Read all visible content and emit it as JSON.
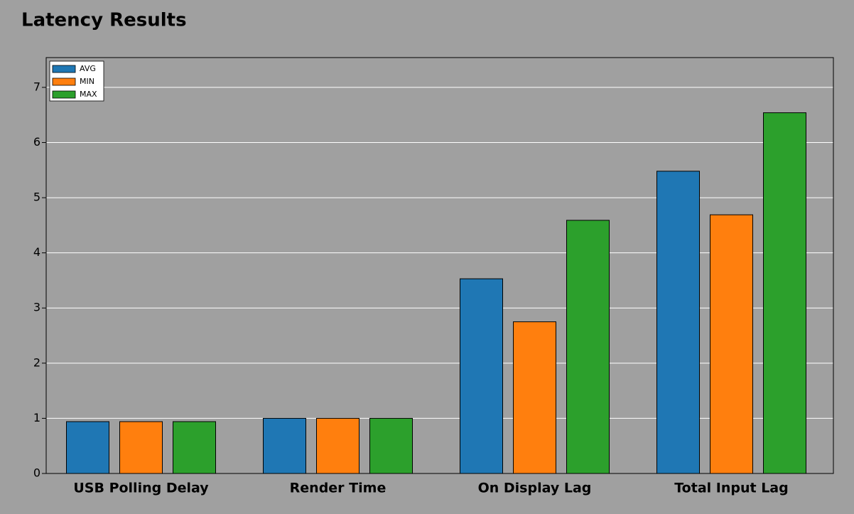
{
  "chart_data": {
    "type": "bar",
    "title": "Latency Results",
    "categories": [
      "USB Polling Delay",
      "Render Time",
      "On Display Lag",
      "Total Input Lag"
    ],
    "series": [
      {
        "name": "AVG",
        "color": "#1f77b4",
        "values": [
          0.94,
          1.0,
          3.53,
          5.48
        ]
      },
      {
        "name": "MIN",
        "color": "#ff7f0e",
        "values": [
          0.94,
          1.0,
          2.75,
          4.69
        ]
      },
      {
        "name": "MAX",
        "color": "#2ca02c",
        "values": [
          0.94,
          1.0,
          4.59,
          6.54
        ]
      }
    ],
    "ylim": [
      0,
      7.54
    ],
    "yticks": [
      0,
      1,
      2,
      3,
      4,
      5,
      6,
      7
    ],
    "grid": true,
    "legend": "upper-left"
  }
}
